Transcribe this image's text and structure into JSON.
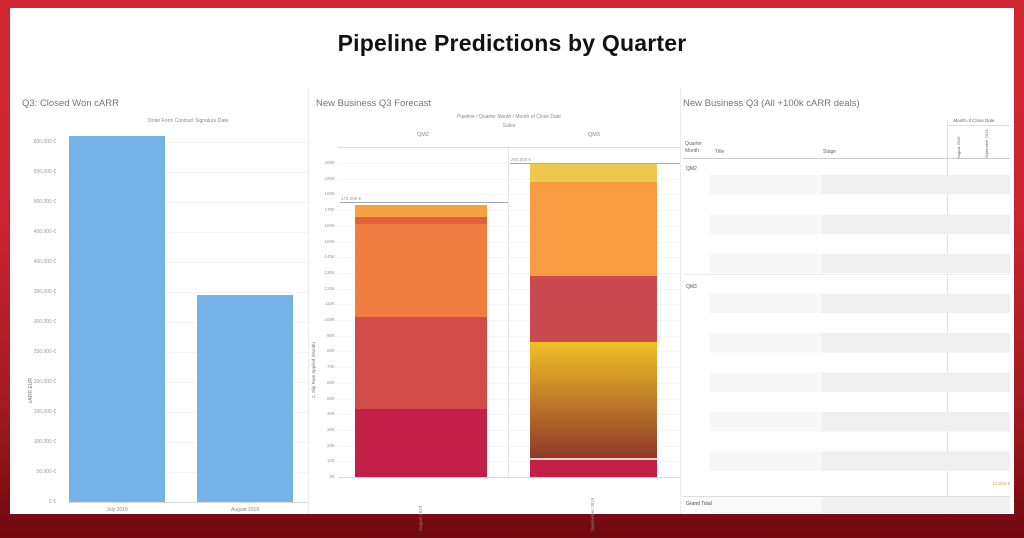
{
  "page": {
    "title": "Pipeline Predictions by Quarter"
  },
  "panels": {
    "closed_won": {
      "title": "Q3: Closed Won cARR"
    },
    "forecast": {
      "title": "New Business Q3 Forecast"
    },
    "deals": {
      "title": "New Business Q3 (All +100k cARR deals)"
    }
  },
  "chart_data": [
    {
      "type": "bar",
      "title": "Order Form Contract Signature Date",
      "ylabel": "cARR EUR",
      "categories": [
        "July 2019",
        "August 2019"
      ],
      "values": [
        610000,
        345000
      ],
      "ylim": [
        0,
        620000
      ],
      "ytick_labels": [
        "0 €",
        "50,000 €",
        "100,000 €",
        "150,000 €",
        "200,000 €",
        "250,000 €",
        "300,000 €",
        "350,000 €",
        "400,000 €",
        "450,000 €",
        "500,000 €",
        "550,000 €",
        "600,000 €"
      ],
      "bar_color": "#75b2e8",
      "grid": true,
      "legend": "none"
    },
    {
      "type": "bar",
      "subtype": "stacked",
      "header": "Pipeline / Quarter Month / Month of Close Date",
      "subheader": "Sales",
      "ylabel": "2. Slip Rate Applied (Month)",
      "ylim": [
        0,
        210000
      ],
      "ytick_labels": [
        "0K",
        "10K",
        "20K",
        "30K",
        "40K",
        "50K",
        "60K",
        "70K",
        "80K",
        "90K",
        "100K",
        "110K",
        "120K",
        "130K",
        "140K",
        "150K",
        "160K",
        "170K",
        "180K",
        "190K",
        "200K"
      ],
      "panes": [
        {
          "label": "QM2",
          "category": "August 2019",
          "total": 173000,
          "segments": [
            {
              "value": 43000,
              "color": "#c22047"
            },
            {
              "value": 59000,
              "color": "#d14b49"
            },
            {
              "value": 59200,
              "color": "#f07e43"
            },
            {
              "value": 4400,
              "color": "#e0613c"
            },
            {
              "value": 7400,
              "color": "#f6a13f"
            }
          ],
          "reference_line": {
            "value": 175000,
            "label": "175,000 €"
          }
        },
        {
          "label": "QM3",
          "category": "September 2019",
          "total": 200000,
          "segments": [
            {
              "value": 11000,
              "color": "#c41f45"
            },
            {
              "value": 75000,
              "color": "gradient:#f0c125,#8f382b"
            },
            {
              "value": 42000,
              "color": "#cb4a50"
            },
            {
              "value": 60000,
              "color": "#f89b41"
            },
            {
              "value": 12000,
              "color": "#efc94f"
            }
          ],
          "reference_line": {
            "value": 200000,
            "label": "200,000 €"
          }
        }
      ],
      "grid": true
    },
    {
      "type": "table",
      "column_group_header": "Month of Close Date",
      "columns": [
        "Quarter Month",
        "Title",
        "Stage"
      ],
      "month_columns": [
        "August 2019",
        "September 2019"
      ],
      "row_groups": [
        "QM2",
        "QM3"
      ],
      "footer": "Grand Total",
      "highlight_value": "10,000 €",
      "highlight_color": "#e2a33d"
    }
  ]
}
